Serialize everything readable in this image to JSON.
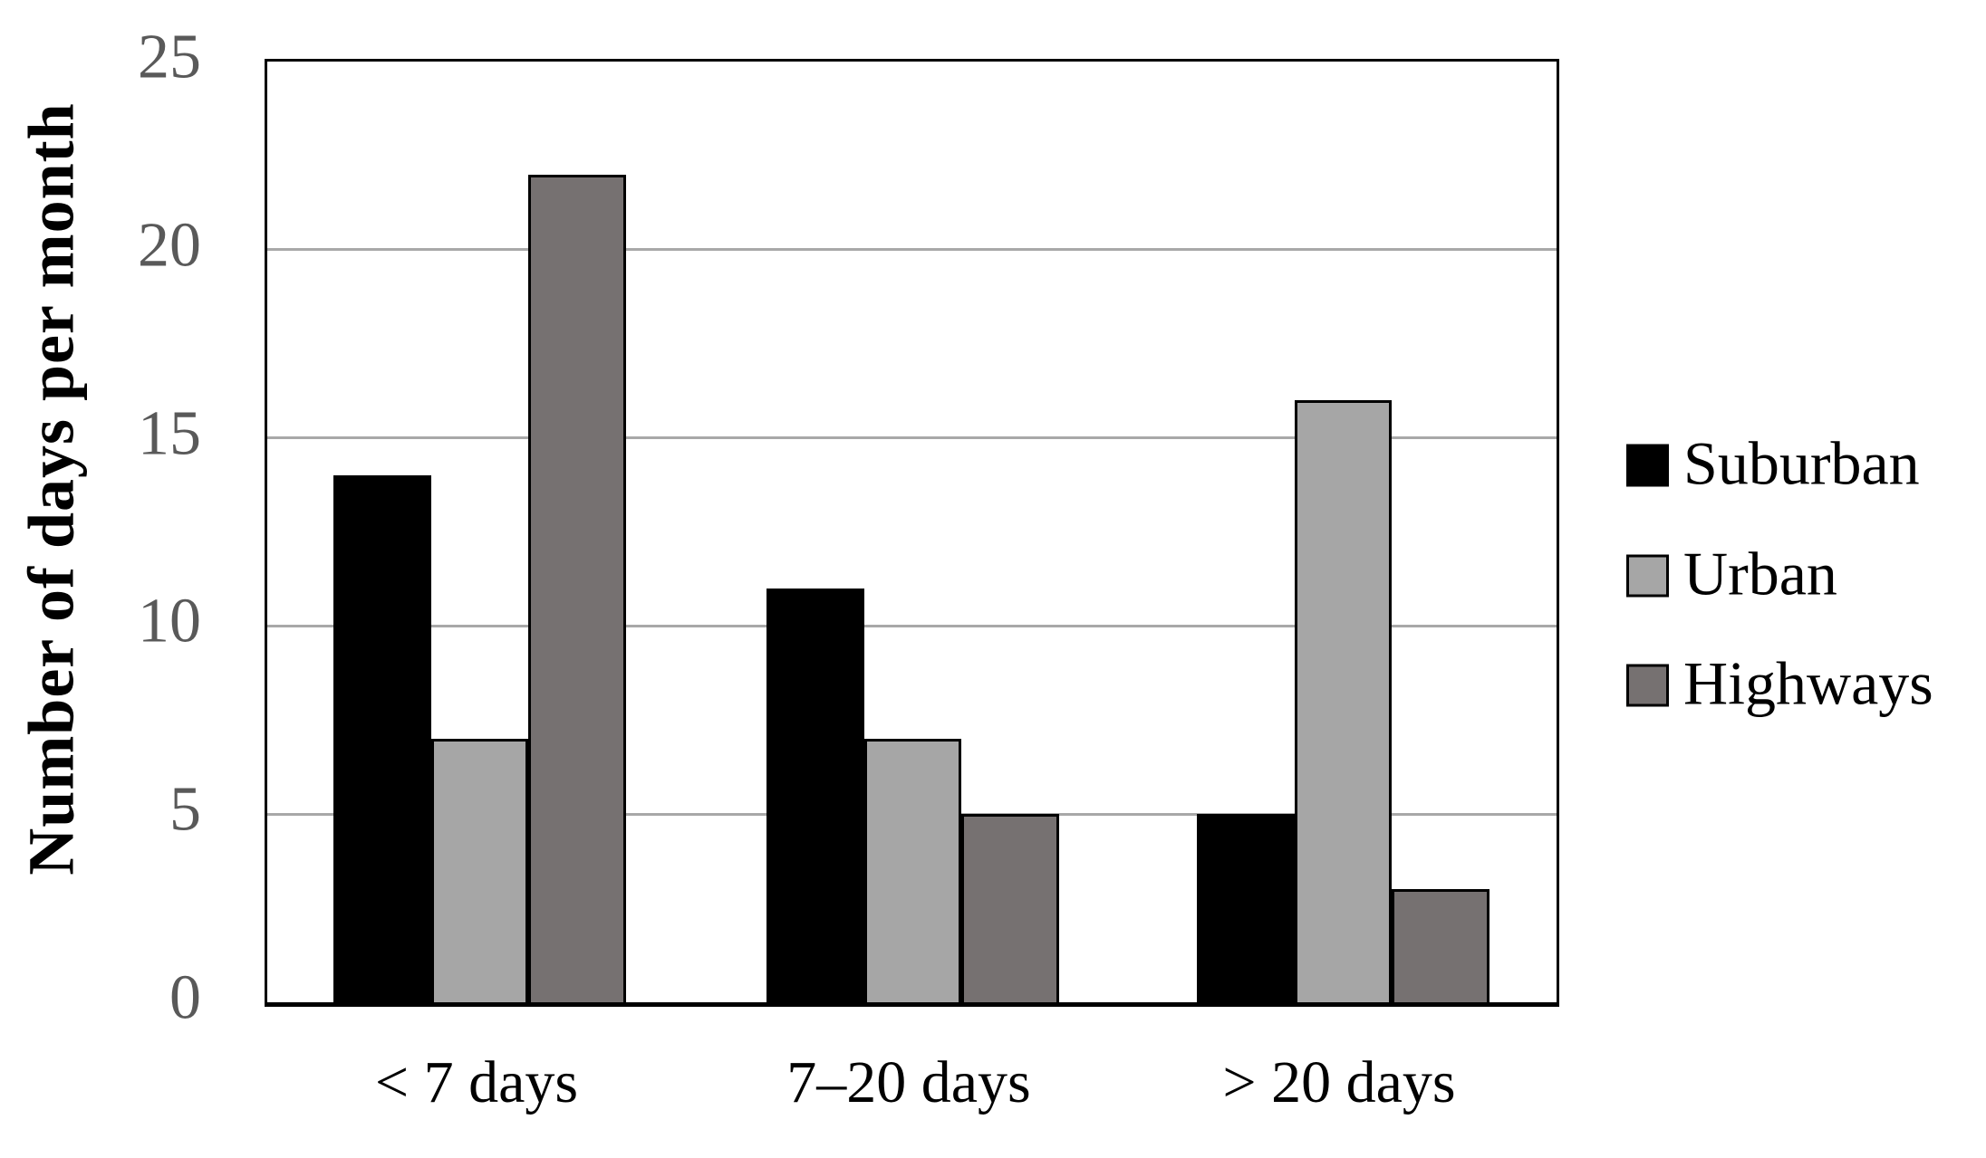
{
  "chart_data": {
    "type": "bar",
    "title": "",
    "ylabel": "Number of days per month",
    "xlabel": "",
    "categories": [
      "< 7 days",
      "7–20 days",
      "> 20 days"
    ],
    "series": [
      {
        "name": "Suburban",
        "color": "#000000",
        "values": [
          14,
          11,
          5
        ]
      },
      {
        "name": "Urban",
        "color": "#a6a6a6",
        "values": [
          7,
          7,
          16
        ]
      },
      {
        "name": "Highways",
        "color": "#767171",
        "values": [
          22,
          5,
          3
        ]
      }
    ],
    "ylim": [
      0,
      25
    ],
    "y_ticks": [
      0,
      5,
      10,
      15,
      20,
      25
    ],
    "grid": true,
    "gridline_values": [
      5,
      10,
      15,
      20
    ],
    "legend_position": "right",
    "colors": {
      "gridline": "#a8a8a8",
      "axis_border": "#000000",
      "tick_label": "#595959",
      "text": "#000000",
      "background": "#ffffff"
    }
  }
}
